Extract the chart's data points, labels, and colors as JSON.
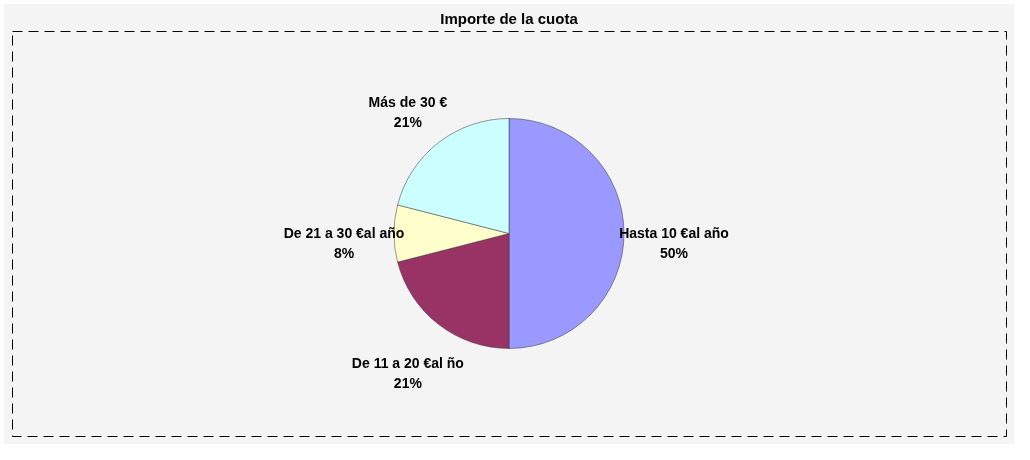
{
  "chart_data": {
    "type": "pie",
    "title": "Importe de la cuota",
    "categories": [
      "Hasta 10 €al año",
      "De 11 a 20 €al ño",
      "De 21 a 30 €al año",
      "Más de 30 €"
    ],
    "values": [
      50,
      21,
      8,
      21
    ],
    "colors": [
      "#9999ff",
      "#993366",
      "#ffffcc",
      "#ccffff"
    ],
    "value_labels": [
      "50%",
      "21%",
      "8%",
      "21%"
    ],
    "legend": false
  }
}
